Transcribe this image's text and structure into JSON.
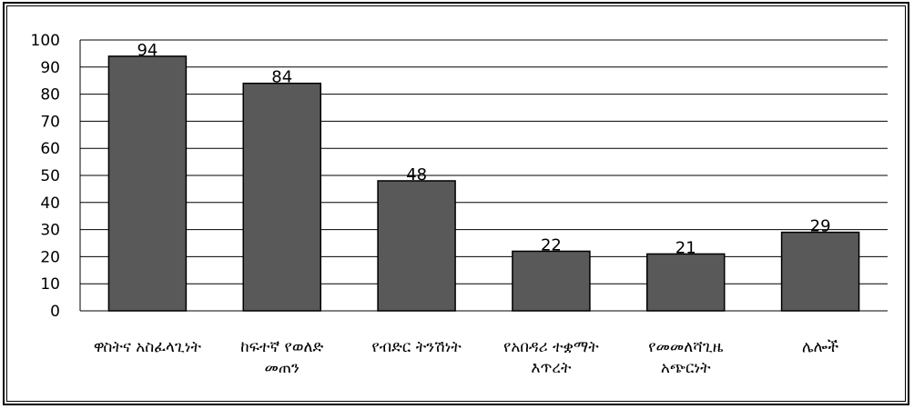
{
  "chart_data": {
    "type": "bar",
    "categories": [
      [
        "ዋስትና አስፈላጊነት"
      ],
      [
        "ከፍተኛ የወለድ",
        "መጠን"
      ],
      [
        "የብድር ትንሽነት"
      ],
      [
        "የአበዳሪ ተቋማት",
        "እጥረት"
      ],
      [
        "የመመለሻጊዜ",
        "አጭርነት"
      ],
      [
        "ሌሎች"
      ]
    ],
    "values": [
      94,
      84,
      48,
      22,
      21,
      29
    ],
    "ylim": [
      0,
      100
    ],
    "yticks": [
      0,
      10,
      20,
      30,
      40,
      50,
      60,
      70,
      80,
      90,
      100
    ],
    "grid": true,
    "bar_color": "#595959",
    "grid_color": "#000000"
  }
}
